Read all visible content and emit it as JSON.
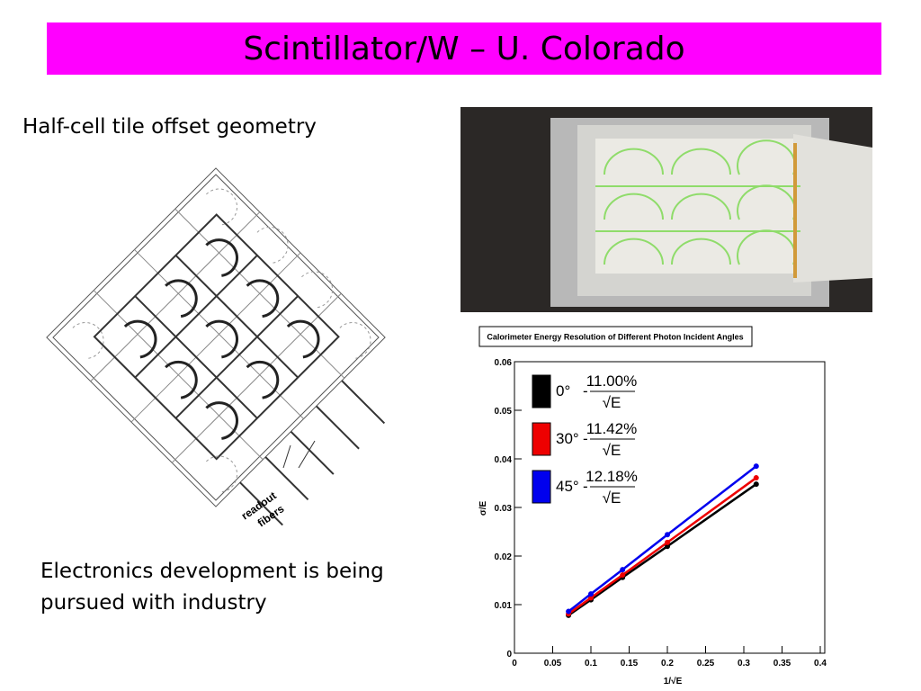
{
  "header": {
    "title": "Scintillator/W – U. Colorado"
  },
  "left_caption": "Half-cell tile offset geometry",
  "diagram": {
    "labels": [
      "readout",
      "fibers"
    ]
  },
  "bottom_text": [
    "Electronics development is being",
    "pursued with industry"
  ],
  "chart_data": {
    "type": "line",
    "title": "Calorimeter Energy Resolution of Different Photon Incident Angles",
    "x_label": "1/√E",
    "y_label": "σ/E",
    "x": [
      0.0707,
      0.1,
      0.1414,
      0.2,
      0.3162
    ],
    "series": [
      {
        "name": "0°",
        "resolution": "11.00%",
        "color": "#000000",
        "values": [
          0.0078,
          0.011,
          0.0156,
          0.022,
          0.0348
        ]
      },
      {
        "name": "30°",
        "resolution": "11.42%",
        "color": "#ee0000",
        "values": [
          0.0081,
          0.0114,
          0.0161,
          0.0228,
          0.0361
        ]
      },
      {
        "name": "45°",
        "resolution": "12.18%",
        "color": "#0000ee",
        "values": [
          0.0086,
          0.0122,
          0.0172,
          0.0244,
          0.0385
        ]
      }
    ],
    "legend_denominator": "√E",
    "xlim": [
      0,
      0.4
    ],
    "xticks": [
      0,
      0.05,
      0.1,
      0.15,
      0.2,
      0.25,
      0.3,
      0.35,
      0.4
    ],
    "ylim": [
      0,
      0.06
    ],
    "yticks": [
      0,
      0.01,
      0.02,
      0.03,
      0.04,
      0.05,
      0.06
    ]
  }
}
